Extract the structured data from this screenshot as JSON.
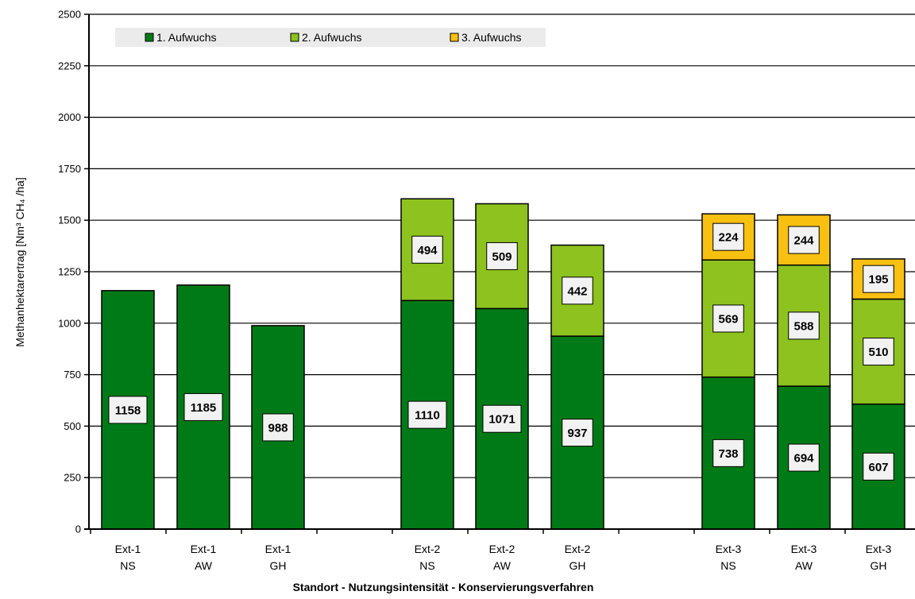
{
  "chart_data": {
    "type": "bar",
    "stacked": true,
    "categories": [
      [
        "Ext-1",
        "NS"
      ],
      [
        "Ext-1",
        "AW"
      ],
      [
        "Ext-1",
        "GH"
      ],
      [
        "Ext-2",
        "NS"
      ],
      [
        "Ext-2",
        "AW"
      ],
      [
        "Ext-2",
        "GH"
      ],
      [
        "Ext-3",
        "NS"
      ],
      [
        "Ext-3",
        "AW"
      ],
      [
        "Ext-3",
        "GH"
      ]
    ],
    "series": [
      {
        "name": "1. Aufwuchs",
        "color": "#007A16",
        "values": [
          1158,
          1185,
          988,
          1110,
          1071,
          937,
          738,
          694,
          607
        ]
      },
      {
        "name": "2. Aufwuchs",
        "color": "#8DC21F",
        "values": [
          null,
          null,
          null,
          494,
          509,
          442,
          569,
          588,
          510
        ]
      },
      {
        "name": "3. Aufwuchs",
        "color": "#F8C010",
        "values": [
          null,
          null,
          null,
          null,
          null,
          null,
          224,
          244,
          195
        ]
      }
    ],
    "xlabel": "Standort - Nutzungsintensität - Konservierungsverfahren",
    "ylabel": "Methanhektarertrag [Nm³ CH₄ /ha]",
    "ylim": [
      0,
      2500
    ],
    "yticks": [
      0,
      250,
      500,
      750,
      1000,
      1250,
      1500,
      1750,
      2000,
      2250,
      2500
    ],
    "grid": true,
    "legend_position": "top"
  }
}
